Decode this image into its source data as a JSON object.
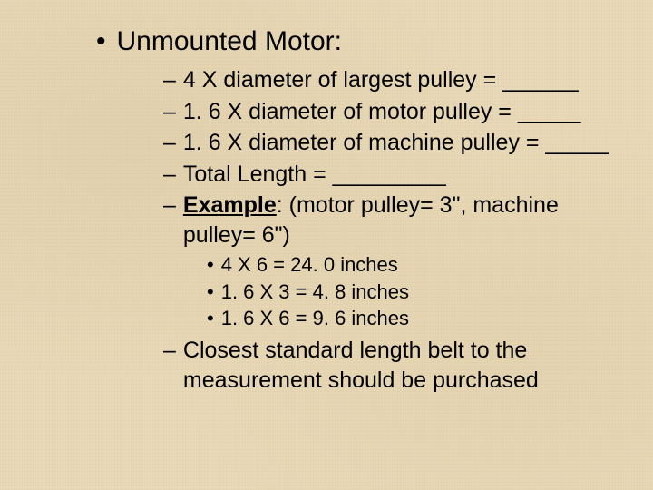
{
  "colors": {
    "background_base": "#e8d9b8",
    "text": "#000000"
  },
  "typography": {
    "font_family": "Arial, Helvetica, sans-serif",
    "heading_fontsize": 30,
    "sub_fontsize": 25,
    "subsub_fontsize": 22
  },
  "heading": {
    "bullet": "•",
    "text": "Unmounted Motor:"
  },
  "subitems": {
    "dash": "–",
    "line1": "4 X diameter of largest pulley = ______",
    "line2": "1. 6 X diameter of motor pulley = _____",
    "line3": "1. 6 X diameter of machine pulley = _____",
    "line4": "Total Length = _________",
    "example_label": "Example",
    "example_rest": ":  (motor pulley= 3\", machine pulley= 6\")"
  },
  "calculations": {
    "bullet": "•",
    "calc1": "4 X 6 = 24. 0 inches",
    "calc2": "1. 6 X 3 = 4. 8 inches",
    "calc3": "1. 6 X 6 = 9. 6 inches"
  },
  "closing": {
    "dash": "–",
    "text": "Closest standard length belt to the measurement should be purchased"
  }
}
